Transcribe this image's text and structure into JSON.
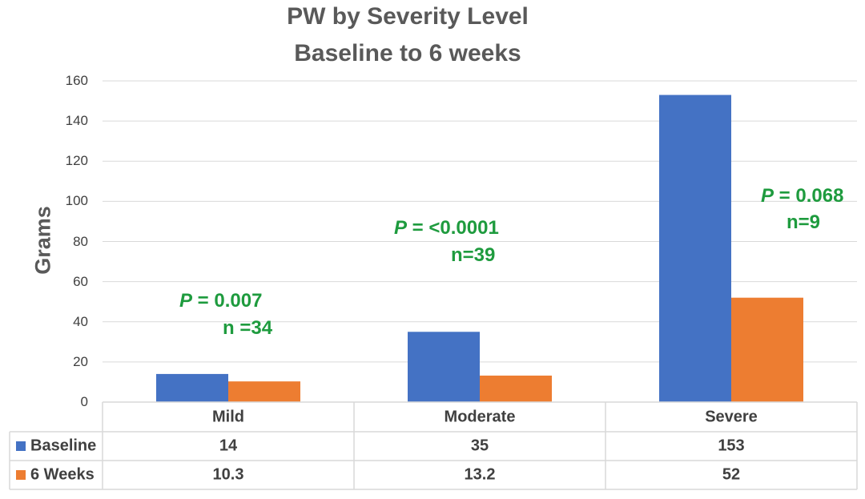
{
  "chart_data": {
    "type": "bar",
    "title": "PW by Severity Level",
    "subtitle": "Baseline to 6 weeks",
    "ylabel": "Grams",
    "xlabel": "",
    "ylim": [
      0,
      160
    ],
    "yticks": [
      0,
      20,
      40,
      60,
      80,
      100,
      120,
      140,
      160
    ],
    "categories": [
      "Mild",
      "Moderate",
      "Severe"
    ],
    "series": [
      {
        "name": "Baseline",
        "values": [
          14,
          35,
          153
        ],
        "color": "#4472c4",
        "labels": [
          "14",
          "35",
          "153"
        ]
      },
      {
        "name": "6 Weeks",
        "values": [
          10.3,
          13.2,
          52
        ],
        "color": "#ed7d31",
        "labels": [
          "10.3",
          "13.2",
          "52"
        ]
      }
    ],
    "annotations": [
      {
        "p_prefix": "P",
        "p_text": " = 0.007",
        "n_text": "n =34"
      },
      {
        "p_prefix": "P",
        "p_text": " = <0.0001",
        "n_text": "n=39"
      },
      {
        "p_prefix": "P",
        "p_text": " = 0.068",
        "n_text": "n=9"
      }
    ],
    "grid": true,
    "legend": "data-table"
  }
}
